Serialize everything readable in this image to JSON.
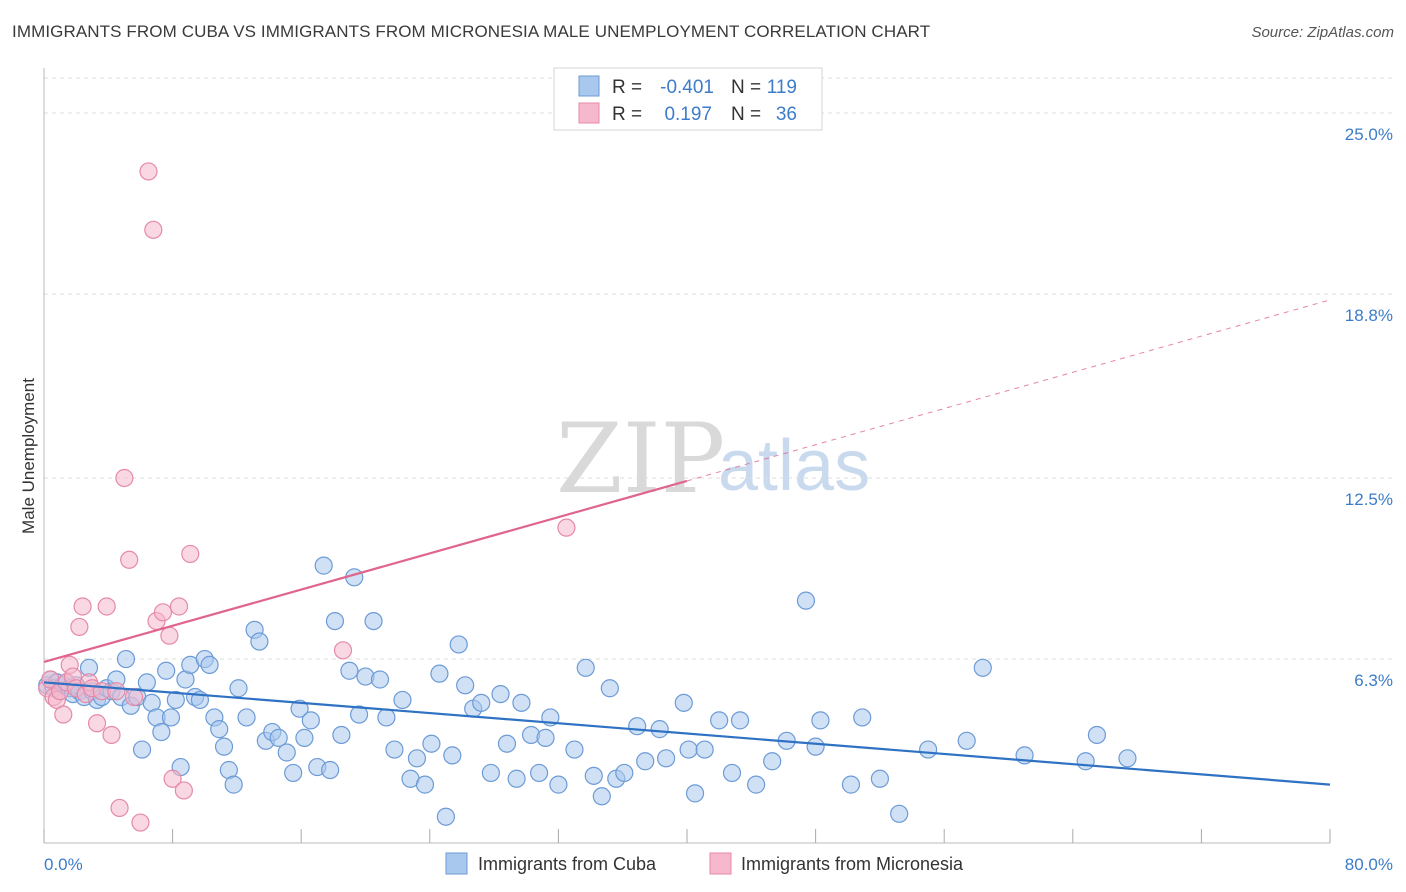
{
  "title": "IMMIGRANTS FROM CUBA VS IMMIGRANTS FROM MICRONESIA MALE UNEMPLOYMENT CORRELATION CHART",
  "source": "Source: ZipAtlas.com",
  "watermark": {
    "zip": "ZIP",
    "atlas": "atlas"
  },
  "colors": {
    "cuba_fill": "#a9c8ee",
    "cuba_stroke": "#6c9bd6",
    "cuba_line": "#2f72c4",
    "micro_fill": "#f6b8cc",
    "micro_stroke": "#e58aa8",
    "micro_line": "#e0658e",
    "grid": "#dddddd",
    "tick_text": "#3d7cc9"
  },
  "legend": {
    "rows": [
      {
        "r_label": "R =",
        "r_value": "-0.401",
        "n_label": "N =",
        "n_value": "119"
      },
      {
        "r_label": "R =",
        "r_value": "0.197",
        "n_label": "N =",
        "n_value": "36"
      }
    ]
  },
  "chart_data": {
    "type": "scatter",
    "title": "IMMIGRANTS FROM CUBA VS IMMIGRANTS FROM MICRONESIA MALE UNEMPLOYMENT CORRELATION CHART",
    "xlabel": "",
    "ylabel": "Male Unemployment",
    "xlim": [
      0,
      80
    ],
    "ylim": [
      0,
      26.2
    ],
    "x_tick_labels": [
      "0.0%",
      "80.0%"
    ],
    "y_ticks": [
      6.3,
      12.5,
      18.8,
      25.0
    ],
    "y_tick_labels": [
      "6.3%",
      "12.5%",
      "18.8%",
      "25.0%"
    ],
    "grid": true,
    "legend_position": "top-center",
    "series": [
      {
        "name": "Immigrants from Cuba",
        "R": -0.401,
        "N": 119,
        "trend": {
          "x": [
            0,
            80
          ],
          "y": [
            5.5,
            2.0
          ],
          "dashed_from": null
        },
        "points": [
          [
            0.2,
            5.4
          ],
          [
            0.4,
            5.6
          ],
          [
            0.6,
            5.3
          ],
          [
            0.8,
            5.5
          ],
          [
            1.0,
            5.2
          ],
          [
            1.2,
            5.4
          ],
          [
            1.4,
            5.5
          ],
          [
            1.6,
            5.3
          ],
          [
            1.8,
            5.1
          ],
          [
            2.0,
            5.4
          ],
          [
            2.2,
            5.2
          ],
          [
            2.5,
            5.0
          ],
          [
            2.8,
            6.0
          ],
          [
            3.0,
            5.2
          ],
          [
            3.3,
            4.9
          ],
          [
            3.6,
            5.0
          ],
          [
            3.9,
            5.3
          ],
          [
            4.2,
            5.2
          ],
          [
            4.5,
            5.6
          ],
          [
            4.8,
            5.0
          ],
          [
            5.1,
            6.3
          ],
          [
            5.4,
            4.7
          ],
          [
            5.8,
            5.0
          ],
          [
            6.1,
            3.2
          ],
          [
            6.4,
            5.5
          ],
          [
            6.7,
            4.8
          ],
          [
            7.0,
            4.3
          ],
          [
            7.3,
            3.8
          ],
          [
            7.6,
            5.9
          ],
          [
            7.9,
            4.3
          ],
          [
            8.2,
            4.9
          ],
          [
            8.5,
            2.6
          ],
          [
            8.8,
            5.6
          ],
          [
            9.1,
            6.1
          ],
          [
            9.4,
            5.0
          ],
          [
            9.7,
            4.9
          ],
          [
            10.0,
            6.3
          ],
          [
            10.3,
            6.1
          ],
          [
            10.6,
            4.3
          ],
          [
            10.9,
            3.9
          ],
          [
            11.2,
            3.3
          ],
          [
            11.5,
            2.5
          ],
          [
            11.8,
            2.0
          ],
          [
            12.1,
            5.3
          ],
          [
            12.6,
            4.3
          ],
          [
            13.1,
            7.3
          ],
          [
            13.4,
            6.9
          ],
          [
            13.8,
            3.5
          ],
          [
            14.2,
            3.8
          ],
          [
            14.6,
            3.6
          ],
          [
            15.1,
            3.1
          ],
          [
            15.5,
            2.4
          ],
          [
            15.9,
            4.6
          ],
          [
            16.2,
            3.6
          ],
          [
            16.6,
            4.2
          ],
          [
            17.0,
            2.6
          ],
          [
            17.4,
            9.5
          ],
          [
            17.8,
            2.5
          ],
          [
            18.1,
            7.6
          ],
          [
            18.5,
            3.7
          ],
          [
            19.0,
            5.9
          ],
          [
            19.3,
            9.1
          ],
          [
            19.6,
            4.4
          ],
          [
            20.0,
            5.7
          ],
          [
            20.5,
            7.6
          ],
          [
            20.9,
            5.6
          ],
          [
            21.3,
            4.3
          ],
          [
            21.8,
            3.2
          ],
          [
            22.3,
            4.9
          ],
          [
            22.8,
            2.2
          ],
          [
            23.2,
            2.9
          ],
          [
            23.7,
            2.0
          ],
          [
            24.1,
            3.4
          ],
          [
            24.6,
            5.8
          ],
          [
            25.0,
            0.9
          ],
          [
            25.4,
            3.0
          ],
          [
            25.8,
            6.8
          ],
          [
            26.2,
            5.4
          ],
          [
            26.7,
            4.6
          ],
          [
            27.2,
            4.8
          ],
          [
            27.8,
            2.4
          ],
          [
            28.4,
            5.1
          ],
          [
            28.8,
            3.4
          ],
          [
            29.4,
            2.2
          ],
          [
            29.7,
            4.8
          ],
          [
            30.3,
            3.7
          ],
          [
            30.8,
            2.4
          ],
          [
            31.2,
            3.6
          ],
          [
            31.5,
            4.3
          ],
          [
            32.0,
            2.0
          ],
          [
            33.0,
            3.2
          ],
          [
            33.7,
            6.0
          ],
          [
            34.2,
            2.3
          ],
          [
            34.7,
            1.6
          ],
          [
            35.2,
            5.3
          ],
          [
            35.6,
            2.2
          ],
          [
            36.1,
            2.4
          ],
          [
            36.9,
            4.0
          ],
          [
            37.4,
            2.8
          ],
          [
            38.3,
            3.9
          ],
          [
            38.7,
            2.9
          ],
          [
            39.8,
            4.8
          ],
          [
            40.1,
            3.2
          ],
          [
            40.5,
            1.7
          ],
          [
            41.1,
            3.2
          ],
          [
            42.0,
            4.2
          ],
          [
            42.8,
            2.4
          ],
          [
            43.3,
            4.2
          ],
          [
            44.3,
            2.0
          ],
          [
            45.3,
            2.8
          ],
          [
            46.2,
            3.5
          ],
          [
            47.4,
            8.3
          ],
          [
            48.0,
            3.3
          ],
          [
            48.3,
            4.2
          ],
          [
            50.2,
            2.0
          ],
          [
            50.9,
            4.3
          ],
          [
            52.0,
            2.2
          ],
          [
            53.2,
            1.0
          ],
          [
            55.0,
            3.2
          ],
          [
            57.4,
            3.5
          ],
          [
            58.4,
            6.0
          ],
          [
            61.0,
            3.0
          ],
          [
            64.8,
            2.8
          ],
          [
            65.5,
            3.7
          ],
          [
            67.4,
            2.9
          ]
        ]
      },
      {
        "name": "Immigrants from Micronesia",
        "R": 0.197,
        "N": 36,
        "trend": {
          "x": [
            0,
            80
          ],
          "y": [
            6.2,
            18.6
          ],
          "dashed_from": 40
        },
        "points": [
          [
            0.2,
            5.3
          ],
          [
            0.4,
            5.6
          ],
          [
            0.6,
            5.0
          ],
          [
            0.8,
            4.9
          ],
          [
            1.0,
            5.2
          ],
          [
            1.2,
            4.4
          ],
          [
            1.4,
            5.5
          ],
          [
            1.6,
            6.1
          ],
          [
            1.8,
            5.7
          ],
          [
            2.0,
            5.3
          ],
          [
            2.2,
            7.4
          ],
          [
            2.4,
            8.1
          ],
          [
            2.6,
            5.1
          ],
          [
            2.8,
            5.5
          ],
          [
            3.0,
            5.3
          ],
          [
            3.3,
            4.1
          ],
          [
            3.6,
            5.2
          ],
          [
            3.9,
            8.1
          ],
          [
            4.2,
            3.7
          ],
          [
            4.5,
            5.2
          ],
          [
            4.7,
            1.2
          ],
          [
            5.0,
            12.5
          ],
          [
            5.3,
            9.7
          ],
          [
            5.6,
            5.0
          ],
          [
            6.0,
            0.7
          ],
          [
            6.5,
            23.0
          ],
          [
            6.8,
            21.0
          ],
          [
            7.0,
            7.6
          ],
          [
            7.4,
            7.9
          ],
          [
            7.8,
            7.1
          ],
          [
            8.0,
            2.2
          ],
          [
            8.4,
            8.1
          ],
          [
            8.7,
            1.8
          ],
          [
            9.1,
            9.9
          ],
          [
            18.6,
            6.6
          ],
          [
            32.5,
            10.8
          ]
        ]
      }
    ]
  },
  "bottom_legend": {
    "cuba": "Immigrants from Cuba",
    "micronesia": "Immigrants from Micronesia"
  }
}
